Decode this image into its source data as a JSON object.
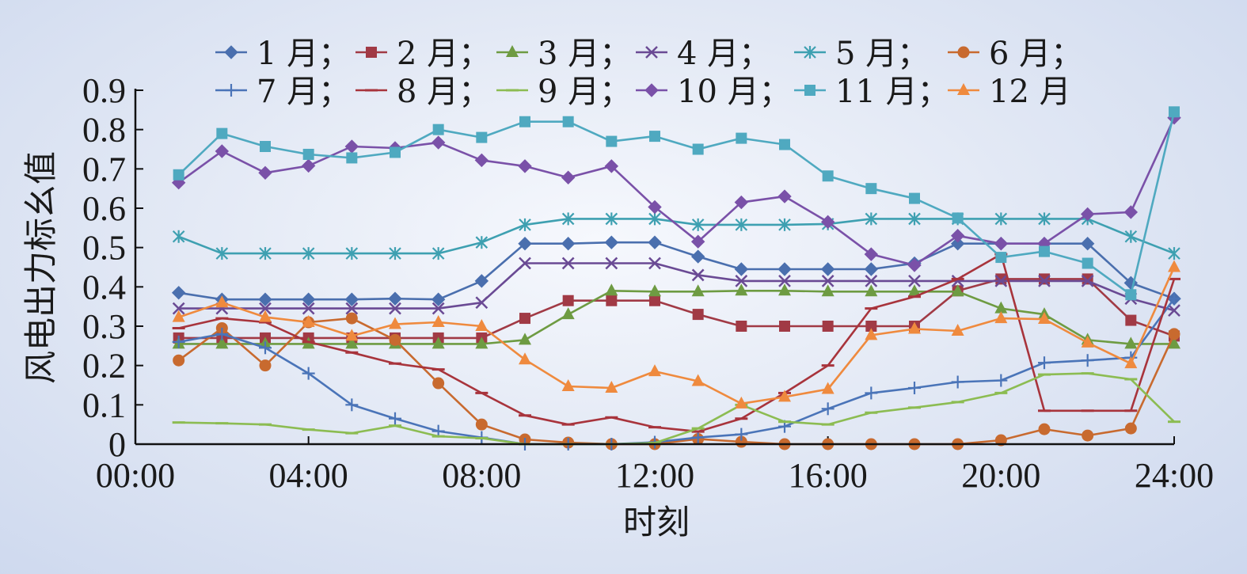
{
  "chart_data": {
    "type": "line",
    "xlabel": "时刻",
    "ylabel": "风电出力标幺值",
    "x_ticks": [
      "00:00",
      "04:00",
      "08:00",
      "12:00",
      "16:00",
      "20:00",
      "24:00"
    ],
    "y_ticks": [
      "0",
      "0.1",
      "0.2",
      "0.3",
      "0.4",
      "0.5",
      "0.6",
      "0.7",
      "0.8",
      "0.9"
    ],
    "xlim": [
      0,
      24
    ],
    "ylim": [
      0,
      0.9
    ],
    "x": [
      1,
      2,
      3,
      4,
      5,
      6,
      7,
      8,
      9,
      10,
      11,
      12,
      13,
      14,
      15,
      16,
      17,
      18,
      19,
      20,
      21,
      22,
      23,
      24
    ],
    "legend_position": "top",
    "series": [
      {
        "name": "1 月；",
        "color": "#4a6fae",
        "marker": "diamond",
        "values": [
          0.385,
          0.368,
          0.368,
          0.368,
          0.368,
          0.37,
          0.368,
          0.415,
          0.51,
          0.51,
          0.513,
          0.513,
          0.477,
          0.445,
          0.445,
          0.445,
          0.445,
          0.46,
          0.51,
          0.51,
          0.51,
          0.51,
          0.41,
          0.37
        ]
      },
      {
        "name": "2 月；",
        "color": "#a13a45",
        "marker": "square",
        "values": [
          0.27,
          0.27,
          0.27,
          0.27,
          0.27,
          0.27,
          0.27,
          0.27,
          0.32,
          0.365,
          0.365,
          0.365,
          0.33,
          0.3,
          0.3,
          0.3,
          0.3,
          0.3,
          0.39,
          0.42,
          0.42,
          0.42,
          0.315,
          0.275
        ]
      },
      {
        "name": "3 月；",
        "color": "#6e9b42",
        "marker": "triangle",
        "values": [
          0.255,
          0.255,
          0.255,
          0.255,
          0.255,
          0.255,
          0.255,
          0.255,
          0.265,
          0.33,
          0.39,
          0.388,
          0.388,
          0.39,
          0.39,
          0.388,
          0.388,
          0.388,
          0.388,
          0.345,
          0.33,
          0.265,
          0.255,
          0.255
        ]
      },
      {
        "name": "4 月；",
        "color": "#6a4a94",
        "marker": "x",
        "values": [
          0.345,
          0.345,
          0.345,
          0.345,
          0.345,
          0.345,
          0.345,
          0.36,
          0.46,
          0.46,
          0.46,
          0.46,
          0.43,
          0.415,
          0.415,
          0.415,
          0.415,
          0.415,
          0.415,
          0.415,
          0.415,
          0.415,
          0.37,
          0.34
        ]
      },
      {
        "name": "5 月；",
        "color": "#3ea0b1",
        "marker": "star",
        "values": [
          0.528,
          0.485,
          0.485,
          0.485,
          0.485,
          0.485,
          0.485,
          0.513,
          0.558,
          0.573,
          0.573,
          0.573,
          0.558,
          0.558,
          0.558,
          0.56,
          0.573,
          0.573,
          0.573,
          0.573,
          0.573,
          0.573,
          0.528,
          0.485
        ]
      },
      {
        "name": "6 月；",
        "color": "#c86a2f",
        "marker": "circle",
        "values": [
          0.213,
          0.295,
          0.2,
          0.31,
          0.32,
          0.265,
          0.155,
          0.05,
          0.012,
          0.004,
          0.0,
          0.0,
          0.013,
          0.006,
          0.0,
          0.0,
          0.0,
          0.0,
          0.0,
          0.01,
          0.038,
          0.022,
          0.04,
          0.28
        ]
      },
      {
        "name": "7 月；",
        "color": "#4a74b8",
        "marker": "plus",
        "values": [
          0.26,
          0.28,
          0.245,
          0.18,
          0.1,
          0.065,
          0.033,
          0.017,
          0.0,
          0.0,
          0.0,
          0.005,
          0.017,
          0.025,
          0.045,
          0.09,
          0.13,
          0.143,
          0.158,
          0.162,
          0.207,
          0.213,
          0.22,
          0.37
        ]
      },
      {
        "name": "8 月；",
        "color": "#a8343c",
        "marker": "dash",
        "values": [
          0.295,
          0.32,
          0.31,
          0.26,
          0.233,
          0.205,
          0.19,
          0.13,
          0.073,
          0.05,
          0.068,
          0.043,
          0.032,
          0.065,
          0.13,
          0.2,
          0.345,
          0.375,
          0.42,
          0.483,
          0.085,
          0.085,
          0.085,
          0.42
        ]
      },
      {
        "name": "9 月；",
        "color": "#8cbc52",
        "marker": "dash",
        "values": [
          0.055,
          0.053,
          0.05,
          0.037,
          0.028,
          0.047,
          0.02,
          0.015,
          0.0,
          0.0,
          0.0,
          0.003,
          0.04,
          0.1,
          0.057,
          0.05,
          0.08,
          0.093,
          0.107,
          0.13,
          0.177,
          0.18,
          0.165,
          0.057
        ]
      },
      {
        "name": "10 月；",
        "color": "#7a51a8",
        "marker": "diamond",
        "values": [
          0.665,
          0.745,
          0.69,
          0.708,
          0.757,
          0.753,
          0.767,
          0.722,
          0.707,
          0.678,
          0.707,
          0.603,
          0.515,
          0.615,
          0.63,
          0.565,
          0.483,
          0.455,
          0.53,
          0.51,
          0.51,
          0.585,
          0.59,
          0.83
        ]
      },
      {
        "name": "11 月；",
        "color": "#4fa9c0",
        "marker": "square",
        "values": [
          0.685,
          0.79,
          0.757,
          0.737,
          0.728,
          0.742,
          0.8,
          0.78,
          0.82,
          0.82,
          0.77,
          0.783,
          0.75,
          0.778,
          0.762,
          0.682,
          0.65,
          0.625,
          0.575,
          0.475,
          0.49,
          0.46,
          0.38,
          0.845
        ]
      },
      {
        "name": "12 月",
        "color": "#ef8a3e",
        "marker": "triangle",
        "values": [
          0.323,
          0.36,
          0.323,
          0.31,
          0.275,
          0.305,
          0.31,
          0.3,
          0.215,
          0.147,
          0.143,
          0.185,
          0.16,
          0.103,
          0.12,
          0.14,
          0.277,
          0.293,
          0.288,
          0.32,
          0.318,
          0.258,
          0.205,
          0.45
        ]
      }
    ]
  }
}
